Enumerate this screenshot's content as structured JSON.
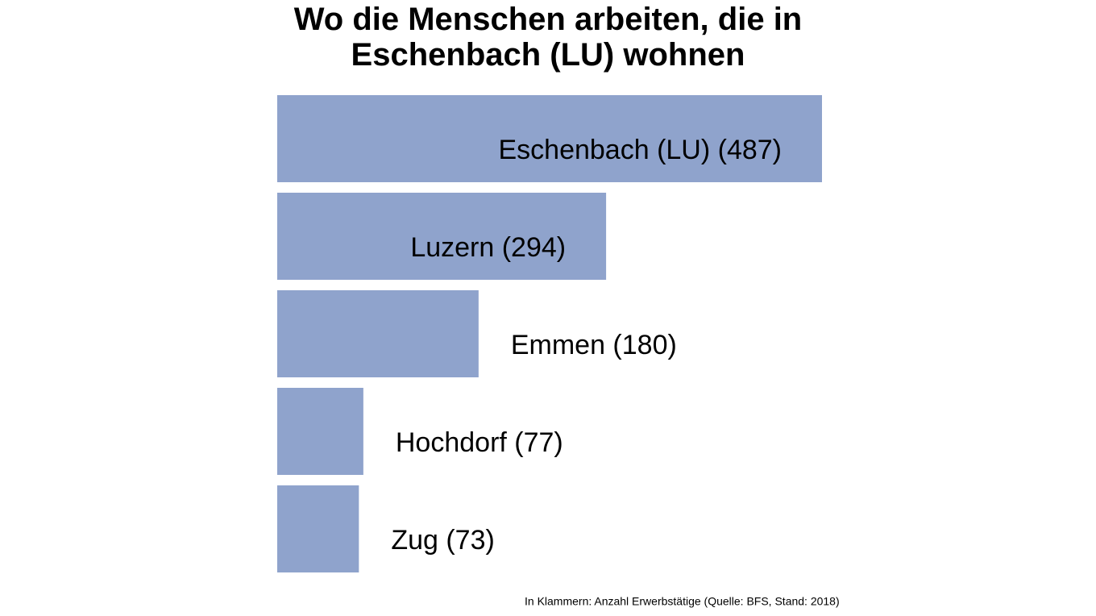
{
  "chart_data": {
    "type": "bar",
    "orientation": "horizontal",
    "title": "Wo die Menschen arbeiten, die in Eschenbach (LU) wohnen",
    "values": [
      487,
      294,
      180,
      77,
      73
    ],
    "value_labels": [
      "Eschenbach (LU) (487)",
      "Luzern (294)",
      "Emmen (180)",
      "Hochdorf (77)",
      "Zug (73)"
    ],
    "color": "#8fa3cc",
    "note": "In Klammern: Anzahl Erwerbstätige (Quelle: BFS, Stand: 2018)"
  }
}
